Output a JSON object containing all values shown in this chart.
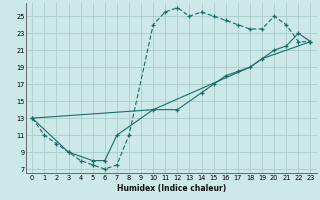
{
  "xlabel": "Humidex (Indice chaleur)",
  "bg_color": "#cce8e8",
  "grid_color": "#aacccc",
  "line_color": "#1a6b6b",
  "xlim": [
    -0.5,
    23.5
  ],
  "ylim": [
    6.5,
    26.5
  ],
  "xticks": [
    0,
    1,
    2,
    3,
    4,
    5,
    6,
    7,
    8,
    9,
    10,
    11,
    12,
    13,
    14,
    15,
    16,
    17,
    18,
    19,
    20,
    21,
    22,
    23
  ],
  "yticks": [
    7,
    9,
    11,
    13,
    15,
    17,
    19,
    21,
    23,
    25
  ],
  "s1_x": [
    0,
    1,
    2,
    3,
    4,
    5,
    6,
    7,
    8,
    10,
    11,
    12,
    13,
    14,
    15,
    16,
    17,
    18,
    19,
    20,
    21,
    22,
    23
  ],
  "s1_y": [
    13,
    11,
    10,
    9,
    8,
    7.5,
    7,
    7.5,
    11,
    24,
    25.5,
    26,
    25,
    25.5,
    25,
    24.5,
    24,
    23.5,
    23.5,
    25,
    24,
    22,
    22
  ],
  "s2_x": [
    0,
    3,
    5,
    6,
    7,
    10,
    12,
    14,
    15,
    16,
    17,
    18,
    19,
    20,
    21,
    22,
    23
  ],
  "s2_y": [
    13,
    9,
    8,
    8,
    11,
    14,
    14,
    16,
    17,
    18,
    18.5,
    19,
    20,
    21,
    21.5,
    23,
    22
  ],
  "s3_x": [
    0,
    10,
    18,
    19,
    23
  ],
  "s3_y": [
    13,
    14,
    19,
    20,
    22
  ]
}
